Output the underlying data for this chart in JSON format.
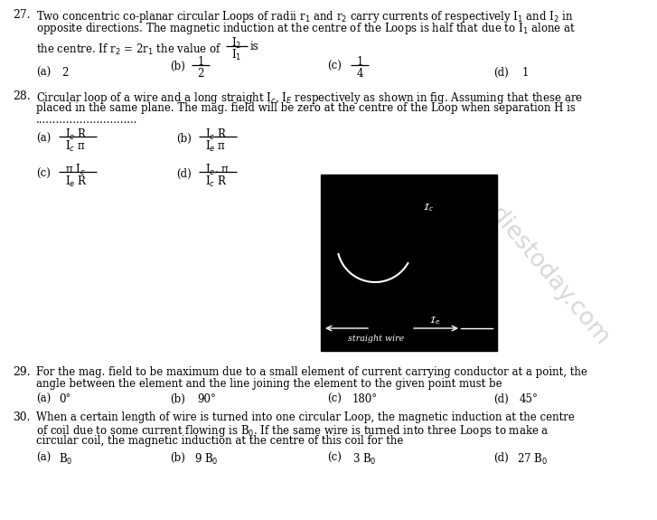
{
  "bg_color": "#ffffff",
  "fig_width": 7.27,
  "fig_height": 5.75,
  "dpi": 100,
  "q27_line1": "Two concentric co-planar circular Loops of radii r$_1$ and r$_2$ carry currents of respectively I$_1$ and I$_2$ in",
  "q27_line2": "opposite directions. The magnetic induction at the centre of the Loops is half that due to I$_1$ alone at",
  "q27_line3": "the centre. If r$_2$ = 2r$_1$ the value of",
  "q28_line1": "Circular loop of a wire and a long straight I$_c$, I$_E$ respectively as shown in fig. Assuming that these are",
  "q28_line2": "placed in the same plane. The mag. field will be zero at the centre of the Loop when separation H is",
  "q28_dots": "..............................",
  "q29_line1": "For the mag. field to be maximum due to a small element of current carrying conductor at a point, the",
  "q29_line2": "angle between the element and the line joining the element to the given point must be",
  "q30_line1": "When a certain length of wire is turned into one circular Loop, the magnetic induction at the centre",
  "q30_line2": "of coil due to some current flowing is B$_0$. If the same wire is turned into three Loops to make a",
  "q30_line3": "circular coil, the magnetic induction at the centre of this coil for the"
}
